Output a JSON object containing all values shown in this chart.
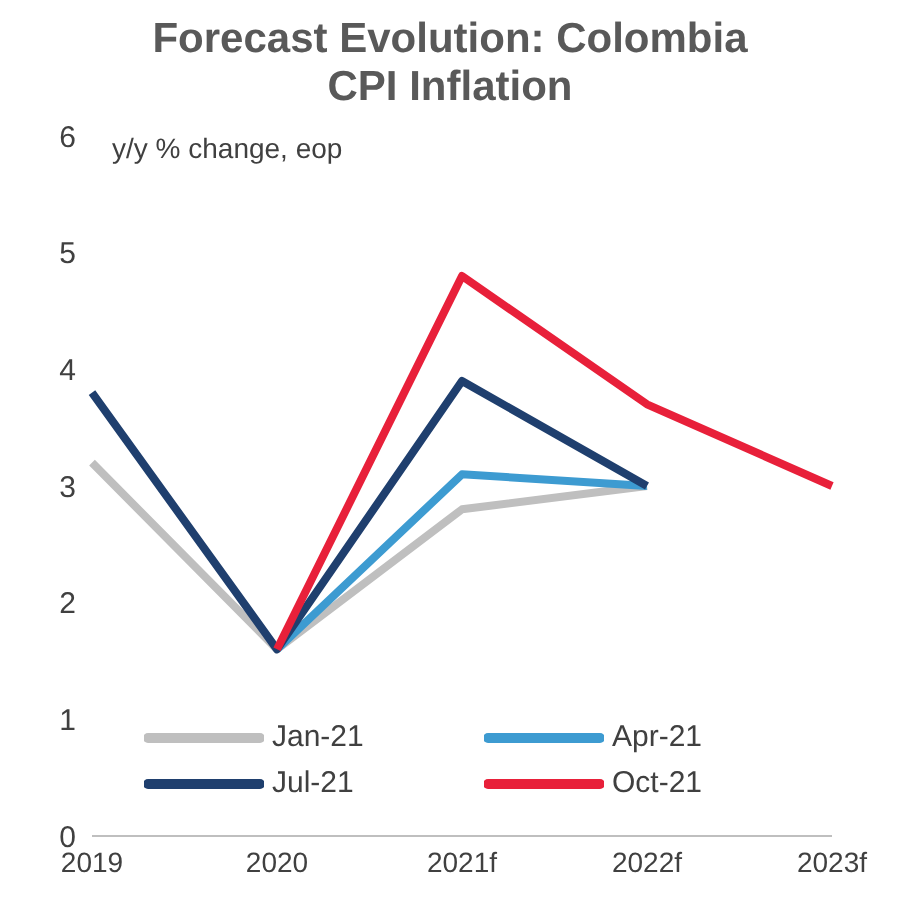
{
  "chart_data": {
    "type": "line",
    "title": "Forecast Evolution: Colombia CPI Inflation",
    "annotations": [
      "y/y % change, eop"
    ],
    "categories": [
      "2019",
      "2020",
      "2021f",
      "2022f",
      "2023f"
    ],
    "series": [
      {
        "name": "Jan-21",
        "color": "#bfbfbf",
        "values": [
          3.2,
          1.6,
          2.8,
          3.0,
          null
        ]
      },
      {
        "name": "Apr-21",
        "color": "#3d9bd1",
        "values": [
          null,
          1.6,
          3.1,
          3.0,
          null
        ]
      },
      {
        "name": "Jul-21",
        "color": "#1f3f6e",
        "values": [
          3.8,
          1.6,
          3.9,
          3.0,
          null
        ]
      },
      {
        "name": "Oct-21",
        "color": "#e8203a",
        "values": [
          null,
          1.6,
          4.8,
          3.7,
          3.0
        ]
      }
    ],
    "ylim": [
      0,
      6
    ],
    "yticks": [
      0,
      1,
      2,
      3,
      4,
      5,
      6
    ],
    "grid": false,
    "legend": "bottom",
    "marker": "none",
    "line_style": "solid"
  }
}
